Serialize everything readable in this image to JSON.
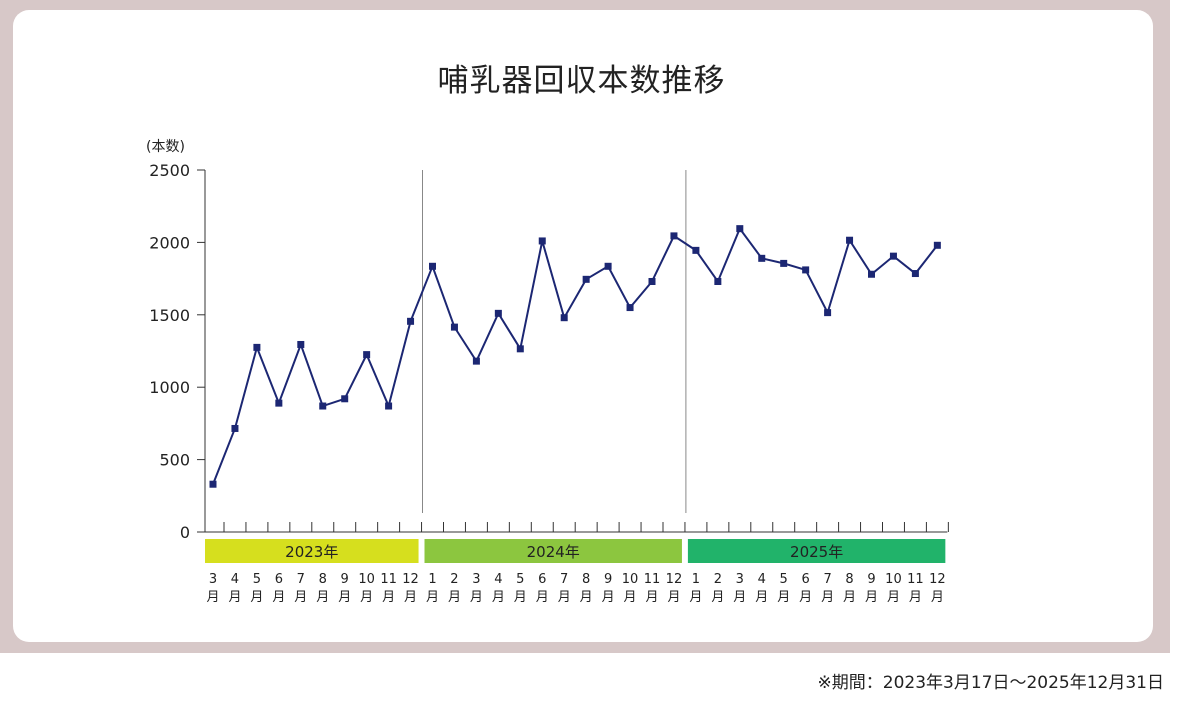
{
  "chart_data": {
    "type": "line",
    "title": "哺乳器回収本数推移",
    "ylabel": "(本数)",
    "xlabel": "",
    "ylim": [
      0,
      2500
    ],
    "yticks": [
      "0",
      "500",
      "1000",
      "1500",
      "2000",
      "2500"
    ],
    "grid": false,
    "series_color": "#1c2773",
    "year_groups": [
      {
        "label": "2023年",
        "color": "#d6df1e",
        "months": [
          "3",
          "4",
          "5",
          "6",
          "7",
          "8",
          "9",
          "10",
          "11",
          "12"
        ]
      },
      {
        "label": "2024年",
        "color": "#8cc63f",
        "months": [
          "1",
          "2",
          "3",
          "4",
          "5",
          "6",
          "7",
          "8",
          "9",
          "10",
          "11",
          "12"
        ]
      },
      {
        "label": "2025年",
        "color": "#21b36a",
        "months": [
          "1",
          "2",
          "3",
          "4",
          "5",
          "6",
          "7",
          "8",
          "9",
          "10",
          "11",
          "12"
        ]
      }
    ],
    "month_suffix": "月",
    "values": [
      330,
      715,
      1275,
      890,
      1295,
      870,
      920,
      1225,
      870,
      1455,
      1835,
      1415,
      1180,
      1510,
      1265,
      2010,
      1480,
      1745,
      1835,
      1550,
      1730,
      2045,
      1945,
      1730,
      2095,
      1890,
      1855,
      1810,
      1515,
      2015,
      1780,
      1905,
      1785,
      1980
    ]
  },
  "footnote": "※期間：2023年3月17日～2025年12月31日"
}
